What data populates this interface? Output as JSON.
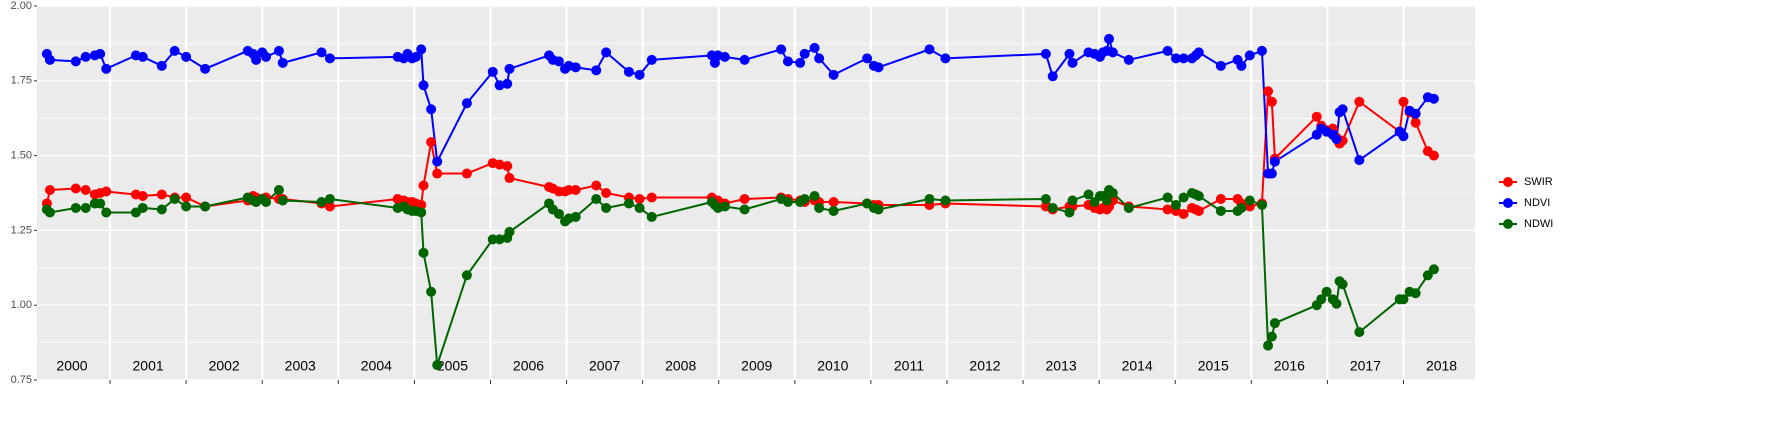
{
  "chart_data": {
    "type": "line",
    "x": [
      2000.17,
      2000.21,
      2000.55,
      2000.68,
      2000.8,
      2000.87,
      2000.95,
      2001.34,
      2001.43,
      2001.68,
      2001.85,
      2002.0,
      2002.25,
      2002.81,
      2002.88,
      2002.92,
      2003.0,
      2003.05,
      2003.22,
      2003.27,
      2003.78,
      2003.89,
      2004.78,
      2004.86,
      2004.91,
      2004.97,
      2005.02,
      2005.09,
      2005.12,
      2005.22,
      2005.3,
      2005.69,
      2006.03,
      2006.12,
      2006.22,
      2006.25,
      2006.77,
      2006.82,
      2006.9,
      2006.98,
      2007.03,
      2007.12,
      2007.39,
      2007.52,
      2007.82,
      2007.96,
      2008.12,
      2008.91,
      2008.95,
      2008.99,
      2009.08,
      2009.34,
      2009.82,
      2009.91,
      2010.07,
      2010.13,
      2010.26,
      2010.32,
      2010.51,
      2010.95,
      2011.04,
      2011.1,
      2011.77,
      2011.98,
      2013.3,
      2013.39,
      2013.61,
      2013.65,
      2013.86,
      2013.94,
      2014.01,
      2014.05,
      2014.1,
      2014.13,
      2014.18,
      2014.39,
      2014.9,
      2015.01,
      2015.11,
      2015.22,
      2015.27,
      2015.31,
      2015.6,
      2015.82,
      2015.87,
      2015.98,
      2016.14,
      2016.22,
      2016.27,
      2016.31,
      2016.86,
      2016.92,
      2016.99,
      2017.07,
      2017.12,
      2017.16,
      2017.2,
      2017.42,
      2017.95,
      2018.0,
      2018.08,
      2018.16,
      2018.32,
      2018.4
    ],
    "series": [
      {
        "name": "SWIR",
        "color": "#ff0000",
        "values": [
          1.34,
          1.385,
          1.39,
          1.385,
          1.37,
          1.375,
          1.38,
          1.37,
          1.365,
          1.37,
          1.36,
          1.36,
          1.33,
          1.35,
          1.365,
          1.36,
          1.355,
          1.36,
          1.355,
          1.355,
          1.34,
          1.33,
          1.355,
          1.35,
          1.345,
          1.345,
          1.34,
          1.335,
          1.4,
          1.545,
          1.44,
          1.44,
          1.475,
          1.47,
          1.465,
          1.425,
          1.395,
          1.39,
          1.38,
          1.38,
          1.385,
          1.385,
          1.4,
          1.375,
          1.36,
          1.355,
          1.36,
          1.36,
          1.35,
          1.35,
          1.34,
          1.355,
          1.36,
          1.355,
          1.35,
          1.345,
          1.35,
          1.345,
          1.345,
          1.34,
          1.335,
          1.335,
          1.335,
          1.34,
          1.33,
          1.32,
          1.33,
          1.33,
          1.335,
          1.325,
          1.32,
          1.325,
          1.32,
          1.33,
          1.35,
          1.33,
          1.32,
          1.315,
          1.305,
          1.325,
          1.32,
          1.315,
          1.355,
          1.355,
          1.34,
          1.33,
          1.34,
          1.715,
          1.68,
          1.49,
          1.63,
          1.6,
          1.585,
          1.59,
          1.56,
          1.54,
          1.55,
          1.68,
          1.58,
          1.68,
          1.645,
          1.61,
          1.515,
          1.5
        ]
      },
      {
        "name": "NDVI",
        "color": "#0000ff",
        "values": [
          1.84,
          1.82,
          1.815,
          1.83,
          1.835,
          1.84,
          1.79,
          1.835,
          1.83,
          1.8,
          1.85,
          1.83,
          1.79,
          1.85,
          1.84,
          1.82,
          1.845,
          1.83,
          1.85,
          1.81,
          1.845,
          1.825,
          1.83,
          1.825,
          1.84,
          1.825,
          1.83,
          1.855,
          1.735,
          1.655,
          1.48,
          1.675,
          1.78,
          1.735,
          1.74,
          1.79,
          1.835,
          1.82,
          1.815,
          1.79,
          1.8,
          1.795,
          1.785,
          1.845,
          1.78,
          1.77,
          1.82,
          1.835,
          1.81,
          1.835,
          1.83,
          1.82,
          1.855,
          1.815,
          1.81,
          1.84,
          1.86,
          1.825,
          1.77,
          1.825,
          1.8,
          1.795,
          1.855,
          1.825,
          1.84,
          1.765,
          1.84,
          1.81,
          1.845,
          1.84,
          1.83,
          1.845,
          1.85,
          1.89,
          1.845,
          1.82,
          1.85,
          1.825,
          1.825,
          1.825,
          1.835,
          1.845,
          1.8,
          1.82,
          1.8,
          1.835,
          1.85,
          1.44,
          1.44,
          1.48,
          1.57,
          1.59,
          1.58,
          1.57,
          1.555,
          1.645,
          1.655,
          1.485,
          1.58,
          1.565,
          1.65,
          1.64,
          1.695,
          1.69
        ]
      },
      {
        "name": "NDWI",
        "color": "#006400",
        "values": [
          1.32,
          1.31,
          1.325,
          1.325,
          1.34,
          1.34,
          1.31,
          1.31,
          1.325,
          1.32,
          1.355,
          1.33,
          1.33,
          1.36,
          1.35,
          1.345,
          1.355,
          1.345,
          1.385,
          1.35,
          1.345,
          1.355,
          1.325,
          1.33,
          1.32,
          1.315,
          1.315,
          1.31,
          1.175,
          1.045,
          0.8,
          1.1,
          1.22,
          1.22,
          1.225,
          1.245,
          1.34,
          1.32,
          1.305,
          1.28,
          1.29,
          1.295,
          1.355,
          1.325,
          1.34,
          1.325,
          1.295,
          1.345,
          1.335,
          1.325,
          1.33,
          1.32,
          1.355,
          1.345,
          1.345,
          1.355,
          1.365,
          1.325,
          1.315,
          1.34,
          1.325,
          1.32,
          1.355,
          1.35,
          1.355,
          1.325,
          1.31,
          1.35,
          1.37,
          1.345,
          1.365,
          1.365,
          1.35,
          1.385,
          1.375,
          1.325,
          1.36,
          1.335,
          1.36,
          1.375,
          1.37,
          1.365,
          1.315,
          1.315,
          1.325,
          1.35,
          1.335,
          0.865,
          0.895,
          0.94,
          1.0,
          1.02,
          1.045,
          1.02,
          1.005,
          1.08,
          1.07,
          0.91,
          1.02,
          1.02,
          1.045,
          1.04,
          1.1,
          1.12
        ]
      }
    ],
    "xlim": [
      2000.04,
      2018.94
    ],
    "xticks": [
      2001,
      2002,
      2003,
      2004,
      2005,
      2006,
      2007,
      2008,
      2009,
      2010,
      2011,
      2012,
      2013,
      2014,
      2015,
      2016,
      2017,
      2018
    ],
    "ylim": [
      0.75,
      2.0
    ],
    "yticks": [
      {
        "value": 0.75,
        "label": "0.75"
      },
      {
        "value": 1.0,
        "label": "1.00"
      },
      {
        "value": 1.25,
        "label": "1.25"
      },
      {
        "value": 1.5,
        "label": "1.50"
      },
      {
        "value": 1.75,
        "label": "1.75"
      },
      {
        "value": 2.0,
        "label": "2.00"
      }
    ],
    "yticks_minor": [
      0.875,
      1.125,
      1.375,
      1.625,
      1.875
    ],
    "grid": true,
    "legend": "right",
    "annotations": [
      {
        "x": 2000.5,
        "label": "2000"
      },
      {
        "x": 2001.5,
        "label": "2001"
      },
      {
        "x": 2002.5,
        "label": "2002"
      },
      {
        "x": 2003.5,
        "label": "2003"
      },
      {
        "x": 2004.5,
        "label": "2004"
      },
      {
        "x": 2005.5,
        "label": "2005"
      },
      {
        "x": 2006.5,
        "label": "2006"
      },
      {
        "x": 2007.5,
        "label": "2007"
      },
      {
        "x": 2008.5,
        "label": "2008"
      },
      {
        "x": 2009.5,
        "label": "2009"
      },
      {
        "x": 2010.5,
        "label": "2010"
      },
      {
        "x": 2011.5,
        "label": "2011"
      },
      {
        "x": 2012.5,
        "label": "2012"
      },
      {
        "x": 2013.5,
        "label": "2013"
      },
      {
        "x": 2014.5,
        "label": "2014"
      },
      {
        "x": 2015.5,
        "label": "2015"
      },
      {
        "x": 2016.5,
        "label": "2016"
      },
      {
        "x": 2017.5,
        "label": "2017"
      },
      {
        "x": 2018.5,
        "label": "2018"
      }
    ]
  }
}
